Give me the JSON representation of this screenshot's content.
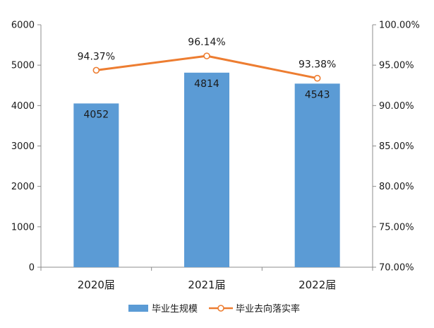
{
  "chart_data": {
    "type": "bar",
    "title": "",
    "categories": [
      "2020届",
      "2021届",
      "2022届"
    ],
    "series": [
      {
        "name": "毕业生规模",
        "kind": "bar",
        "axis": "left",
        "color": "#5B9BD5",
        "values": [
          4052,
          4814,
          4543
        ],
        "labels": [
          "4052",
          "4814",
          "4543"
        ]
      },
      {
        "name": "毕业去向落实率",
        "kind": "line",
        "axis": "right",
        "color": "#ED7D31",
        "values": [
          94.37,
          96.14,
          93.38
        ],
        "labels": [
          "94.37%",
          "96.14%",
          "93.38%"
        ]
      }
    ],
    "y_left": {
      "min": 0,
      "max": 6000,
      "ticks": [
        0,
        1000,
        2000,
        3000,
        4000,
        5000,
        6000
      ],
      "tick_labels": [
        "0",
        "1000",
        "2000",
        "3000",
        "4000",
        "5000",
        "6000"
      ]
    },
    "y_right": {
      "min": 70,
      "max": 100,
      "ticks": [
        70,
        75,
        80,
        85,
        90,
        95,
        100
      ],
      "tick_labels": [
        "70.00%",
        "75.00%",
        "80.00%",
        "85.00%",
        "90.00%",
        "95.00%",
        "100.00%"
      ]
    },
    "grid": false,
    "legend_position": "bottom",
    "legend": [
      "毕业生规模",
      "毕业去向落实率"
    ]
  }
}
